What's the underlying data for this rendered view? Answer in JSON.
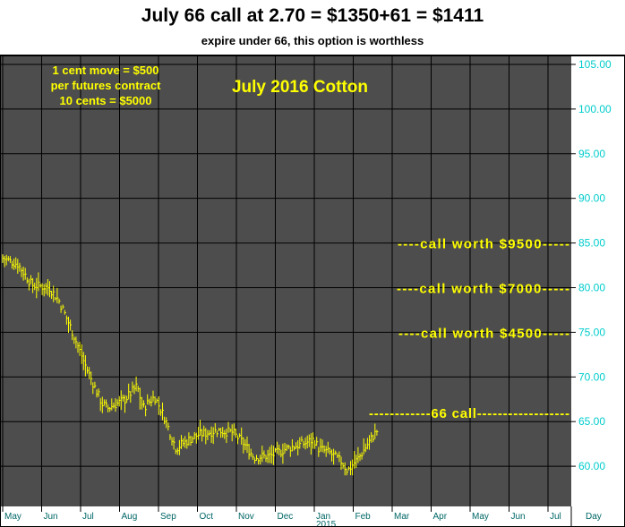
{
  "header": {
    "title": "July 66 call at 2.70 = $1350+61 = $1411",
    "subtitle": "expire under 66, this option is worthless"
  },
  "chart_data": {
    "type": "bar",
    "subtype": "ohlc-price-bars",
    "title": "July 2016 Cotton",
    "info_lines": [
      "1 cent move = $500",
      "per futures contract",
      "10 cents = $5000"
    ],
    "ylim": [
      55.5,
      106
    ],
    "y_ticks": [
      105,
      100,
      95,
      90,
      85,
      80,
      75,
      70,
      65,
      60
    ],
    "y_tick_labels": [
      "105.00",
      "100.00",
      "95.00",
      "90.00",
      "85.00",
      "80.00",
      "75.00",
      "70.00",
      "65.00",
      "60.00"
    ],
    "x_months": [
      "May",
      "Jun",
      "Jul",
      "Aug",
      "Sep",
      "Oct",
      "Nov",
      "Dec",
      "Jan",
      "Feb",
      "Mar",
      "Apr",
      "May",
      "Jun",
      "Jul"
    ],
    "x_year_label": "2015",
    "x_unit_label": "Day",
    "grid": true,
    "colors": {
      "background": "#4d4d4d",
      "bars": "#ffff00",
      "grid": "#000000",
      "axis_text": "#00cccc",
      "annotation": "#ffff00"
    },
    "price_path": [
      [
        0,
        83.3
      ],
      [
        0.4,
        82.6
      ],
      [
        0.75,
        80.3
      ],
      [
        1.2,
        80.0
      ],
      [
        1.45,
        78.5
      ],
      [
        1.75,
        75.5
      ],
      [
        2.15,
        71.0
      ],
      [
        2.55,
        67.0
      ],
      [
        2.7,
        66.5
      ],
      [
        3.15,
        67.5
      ],
      [
        3.45,
        69.0
      ],
      [
        3.6,
        66.5
      ],
      [
        3.9,
        67.8
      ],
      [
        4.15,
        65.5
      ],
      [
        4.45,
        62.0
      ],
      [
        4.6,
        62.5
      ],
      [
        5.0,
        63.5
      ],
      [
        5.5,
        64.0
      ],
      [
        5.9,
        63.8
      ],
      [
        6.2,
        62.5
      ],
      [
        6.45,
        61.0
      ],
      [
        6.9,
        61.2
      ],
      [
        7.3,
        62.0
      ],
      [
        7.7,
        62.5
      ],
      [
        8.0,
        63.0
      ],
      [
        8.1,
        62.0
      ],
      [
        8.4,
        61.5
      ],
      [
        8.7,
        60.5
      ],
      [
        8.85,
        59.5
      ],
      [
        9.15,
        61.0
      ],
      [
        9.45,
        63.0
      ],
      [
        9.65,
        64.2
      ]
    ],
    "annotations": [
      {
        "label": "----call worth $9500-----",
        "y": 85.0
      },
      {
        "label": "----call worth $7000-----",
        "y": 80.0
      },
      {
        "label": "----call worth $4500-----",
        "y": 75.0
      },
      {
        "label": "------------66 call------------------",
        "y": 66.0
      }
    ]
  }
}
